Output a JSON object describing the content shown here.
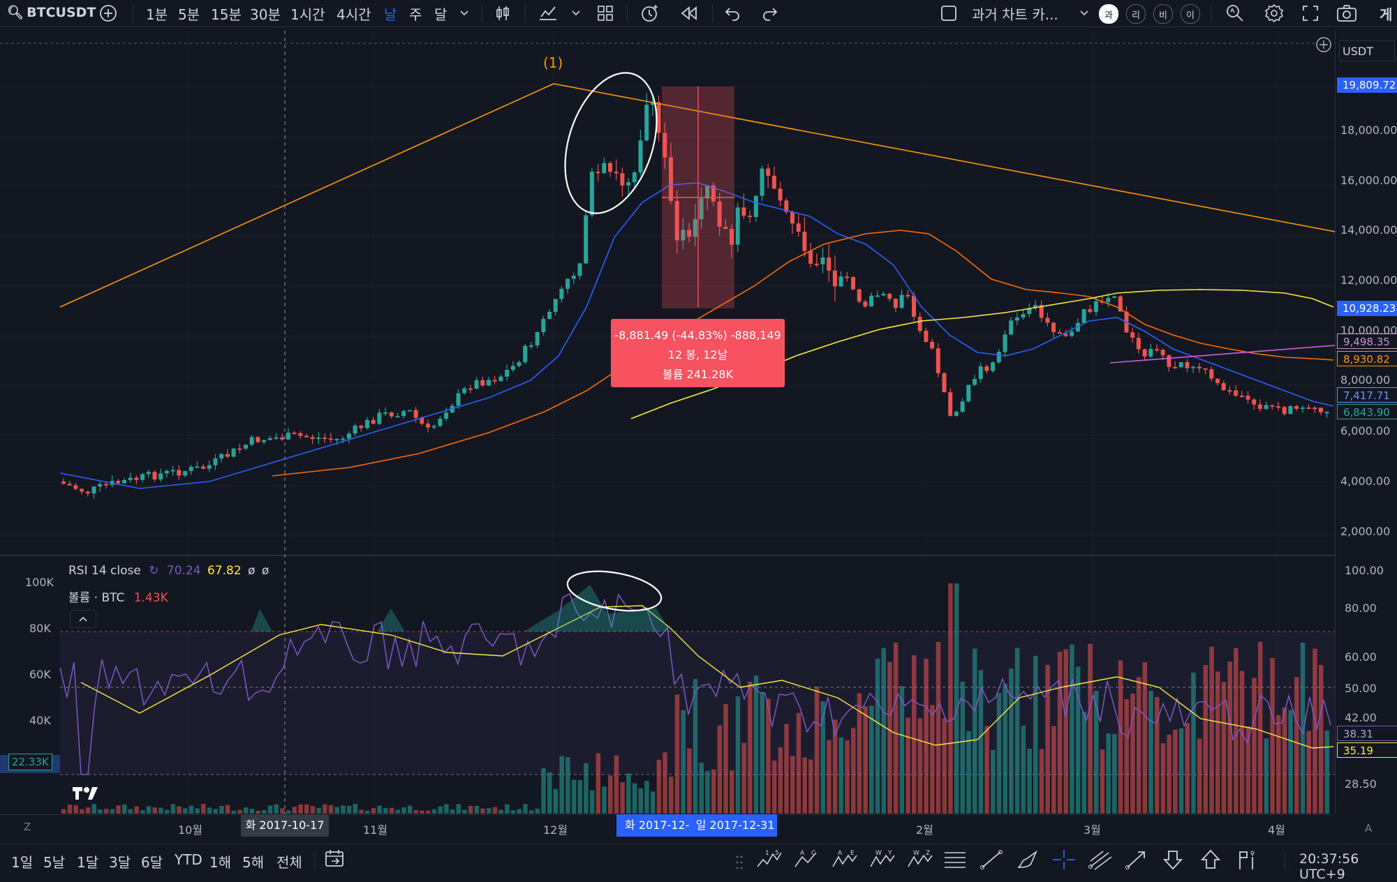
{
  "toolbar": {
    "symbol": "BTCUSDT",
    "intervals": [
      "1분",
      "5분",
      "15분",
      "30분",
      "1시간",
      "4시간",
      "날",
      "주",
      "달"
    ],
    "active_interval": "날",
    "replay_label": "과거 차트 카...",
    "scale_buttons": [
      "과",
      "리",
      "비",
      "이"
    ],
    "accent": "#2962ff"
  },
  "scale": {
    "currency": "USDT",
    "price_ticks": [
      "18,000.00",
      "16,000.00",
      "14,000.00",
      "12,000.00",
      "10,000.00",
      "8,000.00",
      "6,000.00",
      "4,000.00",
      "2,000.00"
    ],
    "rsi_ticks": [
      "100.00",
      "80.00",
      "60.00",
      "50.00",
      "42.00",
      "28.50"
    ],
    "volume_ticks": [
      "100K",
      "80K",
      "60K",
      "40K"
    ],
    "tags": [
      {
        "text": "19,809.72",
        "bg": "#2962ff",
        "fg": "#ffffff"
      },
      {
        "text": "10,928.23",
        "bg": "#2962ff",
        "fg": "#ffffff"
      },
      {
        "text": "9,498.35",
        "bg": "#131722",
        "fg": "#ce93d8",
        "border": "#ce93d8"
      },
      {
        "text": "8,930.82",
        "bg": "#131722",
        "fg": "#ff9800",
        "border": "#ff9800"
      },
      {
        "text": "7,417.71",
        "bg": "#131722",
        "fg": "#5b9cf6",
        "border": "#5b9cf6"
      },
      {
        "text": "6,843.90",
        "bg": "#131722",
        "fg": "#26a69a",
        "border": "#26a69a"
      },
      {
        "text": "38.31",
        "bg": "#131722",
        "fg": "#b39ddb",
        "border": "#7e57c2"
      },
      {
        "text": "35.19",
        "bg": "#131722",
        "fg": "#ffeb3b",
        "border": "#ffeb3b"
      }
    ],
    "crosshair_volume_tag": "22.33K"
  },
  "chart": {
    "wave_label": "(1)",
    "measure": {
      "line1": "-8,881.49 (-44.83%) -888,149",
      "line2": "12 봉, 12날",
      "line3": "볼륨 241.28K"
    },
    "colors": {
      "up": "#26a69a",
      "down": "#ef5350",
      "ema_fast": "#2962ff",
      "ema_slow": "#ff6d00",
      "sma_yellow": "#ffeb3b",
      "trend_orange": "#ff9800",
      "purple_line": "#d05ce3",
      "measure_bg": "#f7525f"
    }
  },
  "indicators": {
    "rsi": {
      "label": "RSI 14 close",
      "value1": "70.24",
      "value2": "67.82",
      "extra1": "ø",
      "extra2": "ø"
    },
    "volume": {
      "label": "볼륨 · BTC",
      "value": "1.43K"
    }
  },
  "time_axis": {
    "labels": [
      "10월",
      "11월",
      "12월",
      "2월",
      "3월",
      "4월"
    ],
    "crosshair_date": "화 2017-10-17",
    "range_start": "화 2017-12-",
    "range_end": "일 2017-12-31"
  },
  "bottom": {
    "ranges": [
      "1일",
      "5날",
      "1달",
      "3달",
      "6달",
      "YTD",
      "1해",
      "5해",
      "전체"
    ],
    "clock": "20:37:56 UTC+9",
    "z_label": "Z",
    "a_label": "A"
  }
}
